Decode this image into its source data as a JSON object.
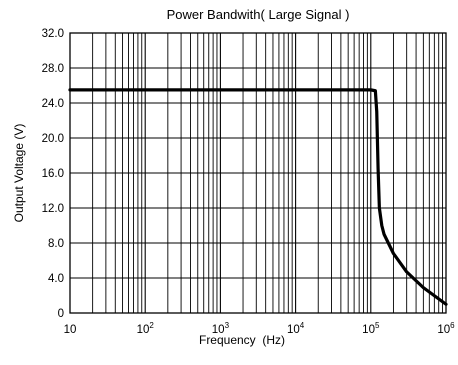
{
  "chart_data": {
    "type": "line",
    "title": "Power Bandwith( Large Signal )",
    "xlabel": "Frequency  (Hz)",
    "ylabel": "Output Voltage (V)",
    "xscale": "log",
    "xlim": [
      10,
      1000000
    ],
    "ylim": [
      0,
      32
    ],
    "grid": true,
    "x_ticks": [
      {
        "base": "10",
        "exp": ""
      },
      {
        "base": "10",
        "exp": "2"
      },
      {
        "base": "10",
        "exp": "3"
      },
      {
        "base": "10",
        "exp": "4"
      },
      {
        "base": "10",
        "exp": "5"
      },
      {
        "base": "10",
        "exp": "6"
      }
    ],
    "y_ticks": [
      "0",
      "4.0",
      "8.0",
      "12.0",
      "16.0",
      "20.0",
      "24.0",
      "28.0",
      "32.0"
    ],
    "series": [
      {
        "x": [
          10,
          100,
          1000,
          10000,
          100000,
          115000,
          120000,
          125000,
          130000,
          140000,
          150000,
          200000,
          300000,
          500000,
          1000000
        ],
        "y": [
          25.5,
          25.5,
          25.5,
          25.5,
          25.5,
          25.4,
          23.0,
          16.5,
          12.0,
          10.0,
          9.0,
          6.8,
          4.7,
          2.9,
          1.0
        ]
      }
    ]
  }
}
